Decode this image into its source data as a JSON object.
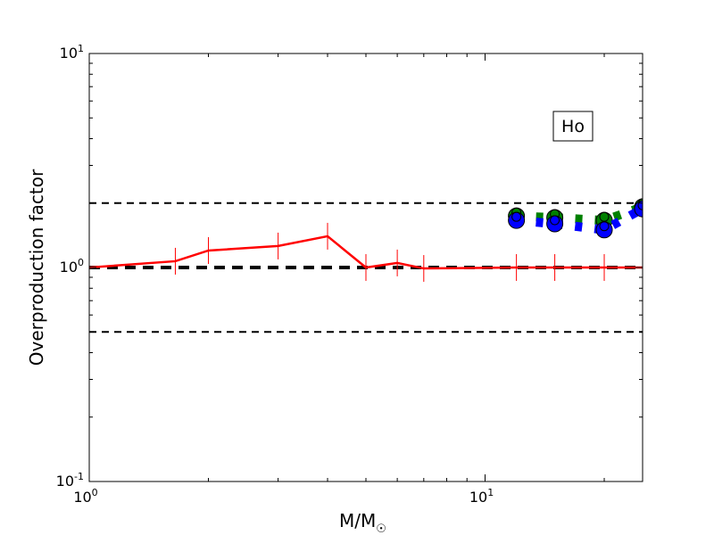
{
  "chart_data": {
    "type": "line",
    "title": "",
    "xlabel": "M/M☉",
    "xlabel_main": "M/M",
    "xlabel_sub": "☉",
    "ylabel": "Overproduction factor",
    "xscale": "log",
    "yscale": "log",
    "xlim": [
      1,
      25
    ],
    "ylim": [
      0.1,
      10
    ],
    "x_ticks": [
      {
        "value": 1,
        "base": "10",
        "exp": "0"
      },
      {
        "value": 10,
        "base": "10",
        "exp": "1"
      }
    ],
    "y_ticks": [
      {
        "value": 0.1,
        "base": "10",
        "exp": "-1"
      },
      {
        "value": 1,
        "base": "10",
        "exp": "0"
      },
      {
        "value": 10,
        "base": "10",
        "exp": "1"
      }
    ],
    "annotation": "Ho",
    "reference_lines": [
      {
        "y": 2.0,
        "style": "dashed",
        "color": "#000000"
      },
      {
        "y": 1.0,
        "style": "dashed-thick",
        "color": "#000000"
      },
      {
        "y": 0.5,
        "style": "dashed",
        "color": "#000000"
      }
    ],
    "series": [
      {
        "name": "red",
        "color": "#ff0000",
        "style": "solid",
        "marker": "errorbar",
        "x": [
          1,
          1.65,
          2,
          3,
          4,
          5,
          6,
          7,
          12,
          15,
          20,
          25
        ],
        "y": [
          1.0,
          1.07,
          1.2,
          1.26,
          1.4,
          1.0,
          1.05,
          0.99,
          1.0,
          1.0,
          1.0,
          1.0
        ]
      },
      {
        "name": "green",
        "color": "#008000",
        "style": "dotted",
        "marker": "circle",
        "x": [
          12,
          15,
          20,
          25
        ],
        "y": [
          1.74,
          1.71,
          1.66,
          1.92
        ]
      },
      {
        "name": "blue",
        "color": "#0000ff",
        "style": "dotted",
        "marker": "circle",
        "x": [
          12,
          15,
          20,
          25
        ],
        "y": [
          1.66,
          1.6,
          1.5,
          1.88
        ]
      }
    ]
  }
}
